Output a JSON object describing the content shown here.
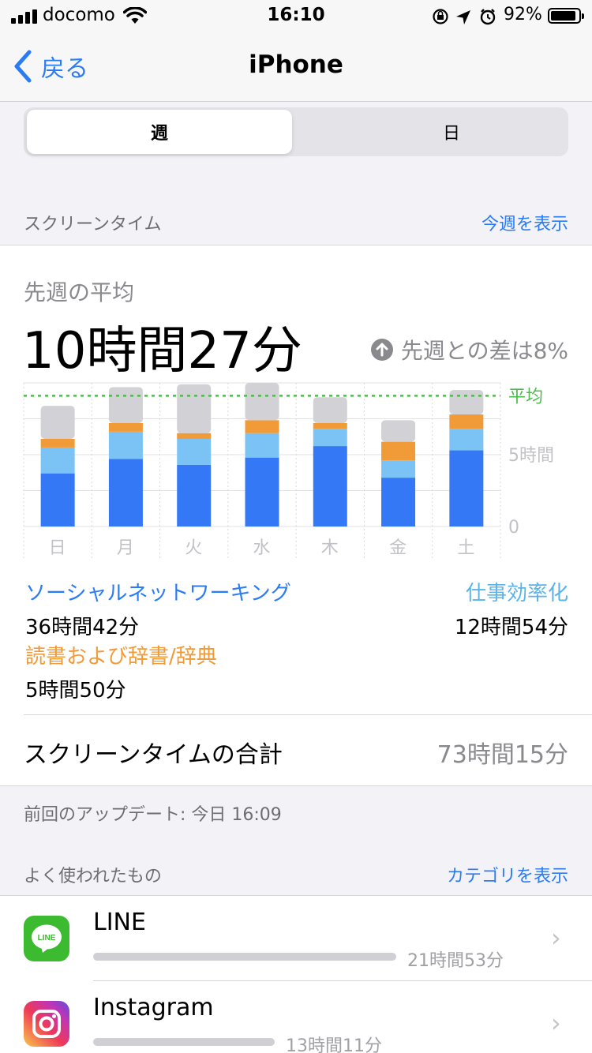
{
  "status_bar": {
    "carrier": "docomo",
    "time": "16:10",
    "battery_pct": "92%",
    "battery_level": 0.92,
    "icons": [
      "signal-icon",
      "wifi-icon",
      "rotation-lock-icon",
      "location-icon",
      "alarm-icon",
      "battery-icon"
    ]
  },
  "nav": {
    "back_label": "戻る",
    "title": "iPhone"
  },
  "segments": {
    "week": "週",
    "day": "日",
    "selected": "week"
  },
  "screen_time_header": {
    "title": "スクリーンタイム",
    "link": "今週を表示"
  },
  "summary": {
    "avg_label": "先週の平均",
    "avg_value": "10時間27分",
    "diff_text": "先週との差は8%",
    "diff_direction": "up"
  },
  "chart_data": {
    "type": "bar",
    "stacked": true,
    "categories": [
      "日",
      "月",
      "火",
      "水",
      "木",
      "金",
      "土"
    ],
    "series": [
      {
        "name": "ソーシャルネットワーキング",
        "color": "#3478f6",
        "values": [
          3.7,
          4.7,
          4.3,
          4.8,
          5.6,
          3.4,
          5.3
        ]
      },
      {
        "name": "仕事効率化",
        "color": "#7cc3f5",
        "values": [
          1.8,
          1.9,
          1.8,
          1.7,
          1.2,
          1.2,
          1.5
        ]
      },
      {
        "name": "読書および辞書/辞典",
        "color": "#f19a38",
        "values": [
          0.6,
          0.6,
          0.4,
          0.9,
          0.4,
          1.3,
          1.0
        ]
      },
      {
        "name": "その他",
        "color": "#d1d1d6",
        "values": [
          2.3,
          2.5,
          3.4,
          2.6,
          1.8,
          1.5,
          1.7
        ]
      }
    ],
    "ylim": [
      0,
      10
    ],
    "yticks": [
      {
        "value": 0,
        "label": "0"
      },
      {
        "value": 5,
        "label": "5時間"
      }
    ],
    "average": {
      "value": 9.1,
      "label": "平均",
      "color": "#4cbb4c"
    },
    "grid": true
  },
  "legend": {
    "social": {
      "name": "ソーシャルネットワーキング",
      "value": "36時間42分",
      "color": "#2a7bf6"
    },
    "productivity": {
      "name": "仕事効率化",
      "value": "12時間54分",
      "color": "#5ab4ea"
    },
    "reading": {
      "name": "読書および辞書/辞典",
      "value": "5時間50分",
      "color": "#f19a38"
    }
  },
  "total": {
    "label": "スクリーンタイムの合計",
    "value": "73時間15分"
  },
  "updated": "前回のアップデート: 今日 16:09",
  "most_used_header": {
    "title": "よく使われたもの",
    "link": "カテゴリを表示"
  },
  "apps": [
    {
      "name": "LINE",
      "time": "21時間53分",
      "fraction": 1.0,
      "icon": "line-app-icon",
      "icon_text": "LINE"
    },
    {
      "name": "Instagram",
      "time": "13時間11分",
      "fraction": 0.6,
      "icon": "instagram-app-icon"
    }
  ]
}
